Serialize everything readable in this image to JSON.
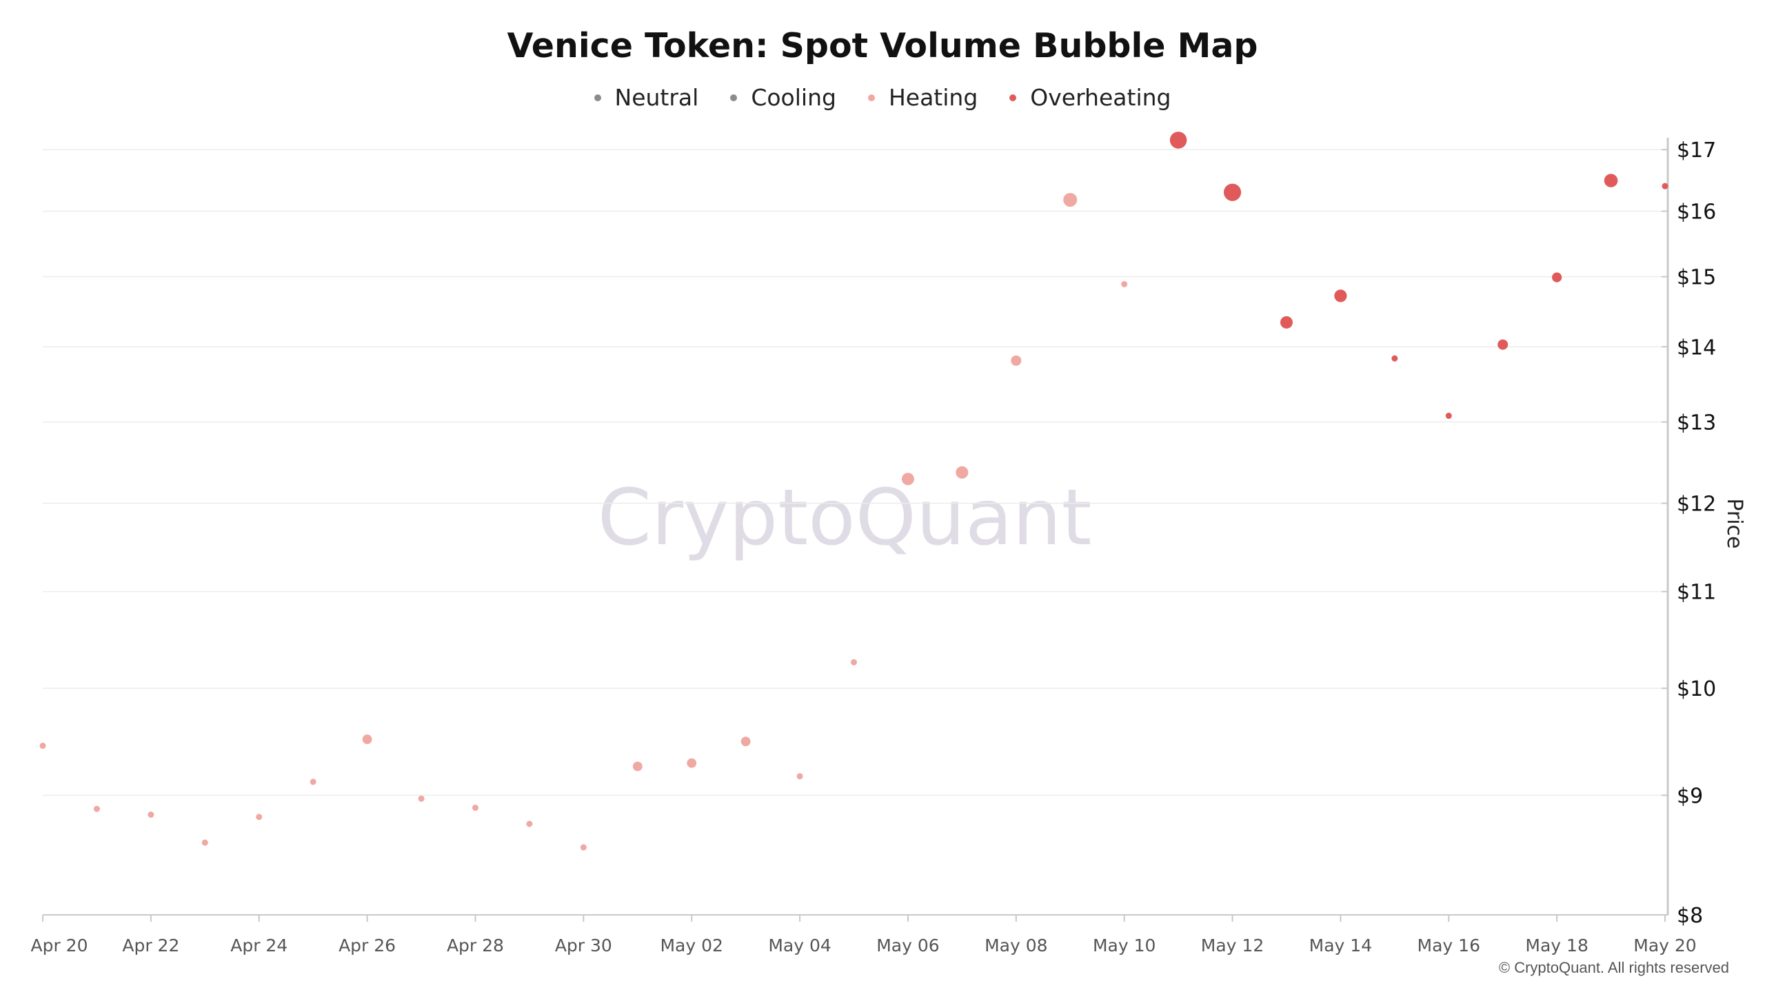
{
  "chart_data": {
    "type": "scatter",
    "title": "Venice Token: Spot Volume Bubble Map",
    "ylabel": "Price",
    "y_scale": "log",
    "ylim": [
      8,
      17.2
    ],
    "y_ticks": [
      8,
      9,
      10,
      11,
      12,
      13,
      14,
      15,
      16,
      17
    ],
    "y_tick_labels": [
      "$8",
      "$9",
      "$10",
      "$11",
      "$12",
      "$13",
      "$14",
      "$15",
      "$16",
      "$17"
    ],
    "xlim": [
      "2025-04-20",
      "2025-05-20"
    ],
    "x_ticks": [
      "2025-04-20",
      "2025-04-22",
      "2025-04-24",
      "2025-04-26",
      "2025-04-28",
      "2025-04-30",
      "2025-05-02",
      "2025-05-04",
      "2025-05-06",
      "2025-05-08",
      "2025-05-10",
      "2025-05-12",
      "2025-05-14",
      "2025-05-16",
      "2025-05-18",
      "2025-05-20"
    ],
    "x_tick_labels": [
      "Apr 20",
      "Apr 22",
      "Apr 24",
      "Apr 26",
      "Apr 28",
      "Apr 30",
      "May 02",
      "May 04",
      "May 06",
      "May 08",
      "May 10",
      "May 12",
      "May 14",
      "May 16",
      "May 18",
      "May 20"
    ],
    "grid": "horizontal",
    "legend_position": "top-center",
    "legend": [
      {
        "name": "Neutral",
        "color": "#8c8c8c"
      },
      {
        "name": "Cooling",
        "color": "#8c8c8c"
      },
      {
        "name": "Heating",
        "color": "#efa8a2"
      },
      {
        "name": "Overheating",
        "color": "#e05a5a"
      }
    ],
    "points": [
      {
        "date": "2025-04-20",
        "price": 9.45,
        "state": "Heating",
        "size": 1
      },
      {
        "date": "2025-04-21",
        "price": 8.88,
        "state": "Heating",
        "size": 1
      },
      {
        "date": "2025-04-22",
        "price": 8.83,
        "state": "Heating",
        "size": 1
      },
      {
        "date": "2025-04-23",
        "price": 8.59,
        "state": "Heating",
        "size": 1
      },
      {
        "date": "2025-04-24",
        "price": 8.81,
        "state": "Heating",
        "size": 1
      },
      {
        "date": "2025-04-25",
        "price": 9.12,
        "state": "Heating",
        "size": 1
      },
      {
        "date": "2025-04-26",
        "price": 9.51,
        "state": "Heating",
        "size": 1.2
      },
      {
        "date": "2025-04-27",
        "price": 8.97,
        "state": "Heating",
        "size": 1
      },
      {
        "date": "2025-04-28",
        "price": 8.89,
        "state": "Heating",
        "size": 1
      },
      {
        "date": "2025-04-29",
        "price": 8.75,
        "state": "Heating",
        "size": 1
      },
      {
        "date": "2025-04-30",
        "price": 8.55,
        "state": "Heating",
        "size": 1
      },
      {
        "date": "2025-05-01",
        "price": 9.26,
        "state": "Heating",
        "size": 1.2
      },
      {
        "date": "2025-05-02",
        "price": 9.29,
        "state": "Heating",
        "size": 1.2
      },
      {
        "date": "2025-05-03",
        "price": 9.49,
        "state": "Heating",
        "size": 1.2
      },
      {
        "date": "2025-05-04",
        "price": 9.17,
        "state": "Heating",
        "size": 1
      },
      {
        "date": "2025-05-05",
        "price": 10.26,
        "state": "Heating",
        "size": 1
      },
      {
        "date": "2025-05-06",
        "price": 12.29,
        "state": "Heating",
        "size": 2.4
      },
      {
        "date": "2025-05-07",
        "price": 12.37,
        "state": "Heating",
        "size": 2.4
      },
      {
        "date": "2025-05-08",
        "price": 13.81,
        "state": "Heating",
        "size": 1.5
      },
      {
        "date": "2025-05-09",
        "price": 16.18,
        "state": "Heating",
        "size": 3.2
      },
      {
        "date": "2025-05-10",
        "price": 14.89,
        "state": "Heating",
        "size": 1
      },
      {
        "date": "2025-05-11",
        "price": 17.16,
        "state": "Overheating",
        "size": 5.2
      },
      {
        "date": "2025-05-12",
        "price": 16.3,
        "state": "Overheating",
        "size": 5.6
      },
      {
        "date": "2025-05-13",
        "price": 14.34,
        "state": "Overheating",
        "size": 2.4
      },
      {
        "date": "2025-05-14",
        "price": 14.72,
        "state": "Overheating",
        "size": 2.5
      },
      {
        "date": "2025-05-15",
        "price": 13.84,
        "state": "Overheating",
        "size": 1
      },
      {
        "date": "2025-05-16",
        "price": 13.08,
        "state": "Overheating",
        "size": 1
      },
      {
        "date": "2025-05-17",
        "price": 14.03,
        "state": "Overheating",
        "size": 1.5
      },
      {
        "date": "2025-05-18",
        "price": 14.99,
        "state": "Overheating",
        "size": 1.3
      },
      {
        "date": "2025-05-19",
        "price": 16.49,
        "state": "Overheating",
        "size": 3.0
      },
      {
        "date": "2025-05-20",
        "price": 16.4,
        "state": "Overheating",
        "size": 1
      }
    ]
  },
  "watermark": "CryptoQuant",
  "copyright": "© CryptoQuant. All rights reserved",
  "colors": {
    "grid": "#ececec",
    "axis": "#c8c8c8",
    "heating": "#efa8a2",
    "overheating": "#e05a5a"
  }
}
